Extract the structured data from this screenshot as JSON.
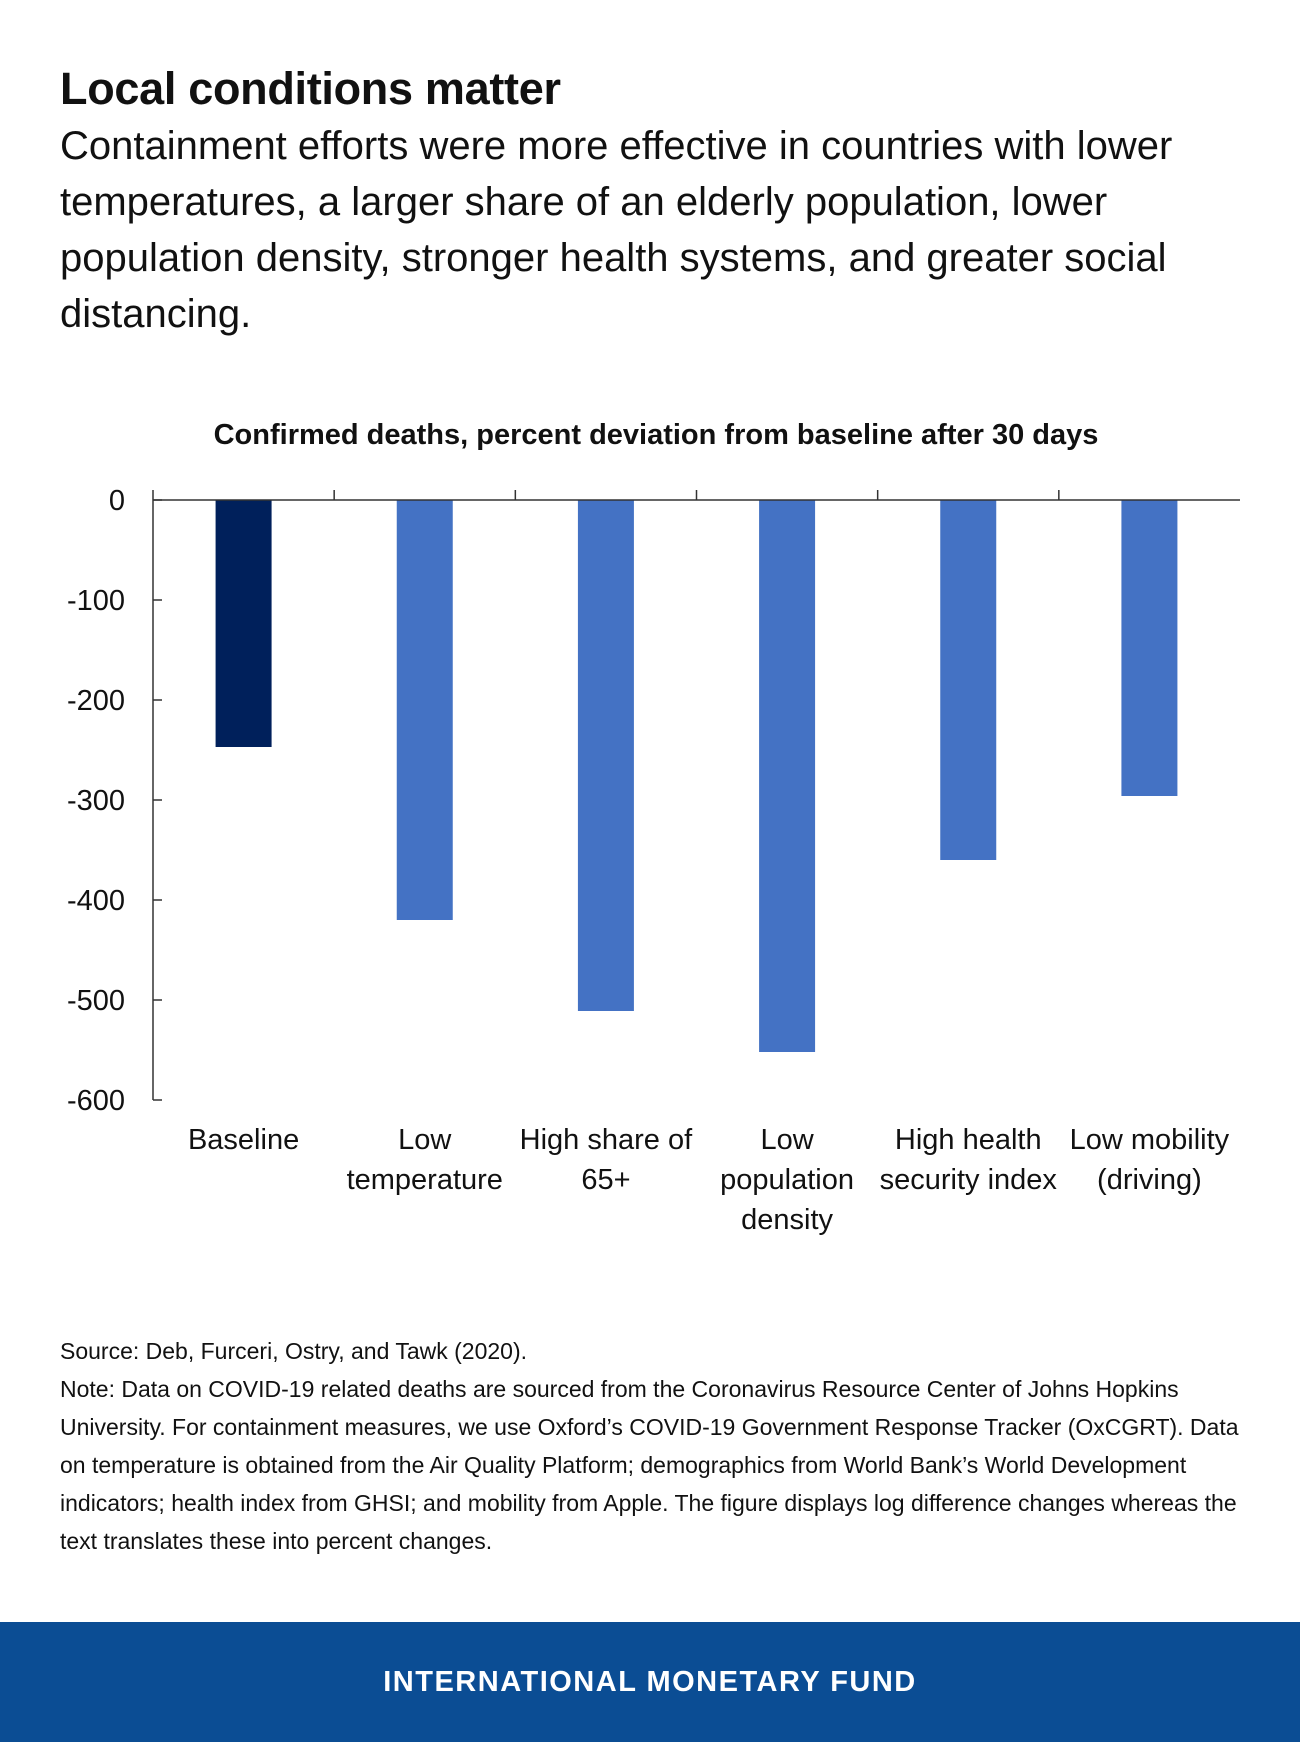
{
  "headline": "Local conditions matter",
  "subhead": "Containment efforts were more effective in countries with lower temperatures, a larger share of an elderly population, lower population density, stronger health systems, and greater social distancing.",
  "chart_data": {
    "type": "bar",
    "title": "Confirmed deaths, percent deviation from baseline after 30 days",
    "xlabel": "",
    "ylabel": "",
    "ylim": [
      -600,
      0
    ],
    "yticks": [
      0,
      -100,
      -200,
      -300,
      -400,
      -500,
      -600
    ],
    "categories": [
      [
        "Baseline"
      ],
      [
        "Low",
        "temperature"
      ],
      [
        "High share of",
        "65+"
      ],
      [
        "Low",
        "population",
        "density"
      ],
      [
        "High health",
        "security index"
      ],
      [
        "Low mobility",
        "(driving)"
      ]
    ],
    "values": [
      -247,
      -420,
      -511,
      -552,
      -360,
      -296
    ],
    "colors": [
      "#00205b",
      "#4472c4",
      "#4472c4",
      "#4472c4",
      "#4472c4",
      "#4472c4"
    ],
    "grid": false,
    "legend": "none"
  },
  "notes": {
    "source": "Source: Deb, Furceri, Ostry, and Tawk (2020).",
    "note": "Note: Data on COVID-19 related deaths are sourced from the Coronavirus Resource Center of Johns Hopkins University. For containment measures, we use Oxford’s COVID-19 Government Response Tracker (OxCGRT). Data on temperature is obtained from the Air Quality Platform; demographics from World Bank’s World Development indicators; health index from GHSI; and mobility from Apple. The figure displays log difference changes whereas the text translates these into percent changes."
  },
  "footer": {
    "label": "INTERNATIONAL MONETARY FUND"
  }
}
